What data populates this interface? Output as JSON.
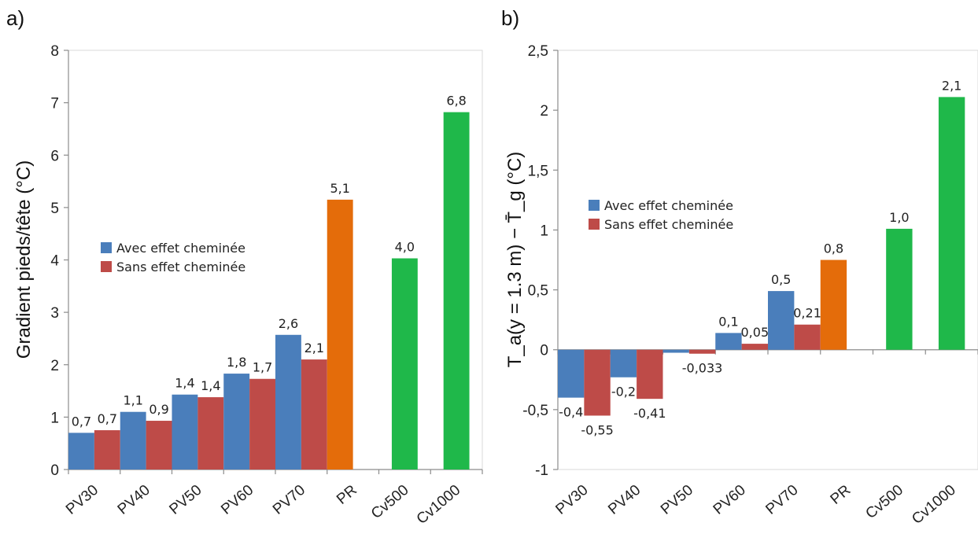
{
  "chart_data": [
    {
      "panel_label": "a)",
      "type": "bar",
      "ylabel": "Gradient pieds/tête (°C)",
      "ylim": [
        0,
        8
      ],
      "yticks": [
        "0",
        "1",
        "2",
        "3",
        "4",
        "5",
        "6",
        "7",
        "8"
      ],
      "categories": [
        "PV30",
        "PV40",
        "PV50",
        "PV60",
        "PV70",
        "PR",
        "Cv500",
        "Cv1000"
      ],
      "legend": [
        "Avec effet cheminée",
        "Sans effet cheminée"
      ],
      "legend_position": "center-left",
      "colors": {
        "avec": "#4a7ebb",
        "sans": "#be4b48",
        "pr": "#e46c0a",
        "cv": "#1fb84a"
      },
      "bars": [
        {
          "category": "PV30",
          "series": "avec",
          "value": 0.7,
          "label": "0,7"
        },
        {
          "category": "PV30",
          "series": "sans",
          "value": 0.75,
          "label": "0,7"
        },
        {
          "category": "PV40",
          "series": "avec",
          "value": 1.1,
          "label": "1,1"
        },
        {
          "category": "PV40",
          "series": "sans",
          "value": 0.93,
          "label": "0,9"
        },
        {
          "category": "PV50",
          "series": "avec",
          "value": 1.43,
          "label": "1,4"
        },
        {
          "category": "PV50",
          "series": "sans",
          "value": 1.38,
          "label": "1,4"
        },
        {
          "category": "PV60",
          "series": "avec",
          "value": 1.83,
          "label": "1,8"
        },
        {
          "category": "PV60",
          "series": "sans",
          "value": 1.73,
          "label": "1,7"
        },
        {
          "category": "PV70",
          "series": "avec",
          "value": 2.57,
          "label": "2,6"
        },
        {
          "category": "PV70",
          "series": "sans",
          "value": 2.1,
          "label": "2,1"
        },
        {
          "category": "PR",
          "series": "single",
          "value": 5.15,
          "label": "5,1"
        },
        {
          "category": "Cv500",
          "series": "single",
          "value": 4.03,
          "label": "4,0"
        },
        {
          "category": "Cv1000",
          "series": "single",
          "value": 6.82,
          "label": "6,8"
        }
      ]
    },
    {
      "panel_label": "b)",
      "type": "bar",
      "ylabel": "T_a(y = 1.3 m) − T̄_g (°C)",
      "ylim": [
        -1,
        2.5
      ],
      "yticks": [
        "-1",
        "-0,5",
        "0",
        "0,5",
        "1",
        "1,5",
        "2",
        "2,5"
      ],
      "categories": [
        "PV30",
        "PV40",
        "PV50",
        "PV60",
        "PV70",
        "PR",
        "Cv500",
        "Cv1000"
      ],
      "legend": [
        "Avec effet cheminée",
        "Sans effet cheminée"
      ],
      "legend_position": "center-left",
      "colors": {
        "avec": "#4a7ebb",
        "sans": "#be4b48",
        "pr": "#e46c0a",
        "cv": "#1fb84a"
      },
      "bars": [
        {
          "category": "PV30",
          "series": "avec",
          "value": -0.4,
          "label": "-0,4"
        },
        {
          "category": "PV30",
          "series": "sans",
          "value": -0.55,
          "label": "-0,55"
        },
        {
          "category": "PV40",
          "series": "avec",
          "value": -0.23,
          "label": "-0,2"
        },
        {
          "category": "PV40",
          "series": "sans",
          "value": -0.41,
          "label": "-0,41"
        },
        {
          "category": "PV50",
          "series": "avec",
          "value": -0.025,
          "label": ""
        },
        {
          "category": "PV50",
          "series": "sans",
          "value": -0.033,
          "label": "-0,033"
        },
        {
          "category": "PV60",
          "series": "avec",
          "value": 0.14,
          "label": "0,1"
        },
        {
          "category": "PV60",
          "series": "sans",
          "value": 0.05,
          "label": "0,05"
        },
        {
          "category": "PV70",
          "series": "avec",
          "value": 0.49,
          "label": "0,5"
        },
        {
          "category": "PV70",
          "series": "sans",
          "value": 0.21,
          "label": "0,21"
        },
        {
          "category": "PR",
          "series": "single",
          "value": 0.75,
          "label": "0,8"
        },
        {
          "category": "Cv500",
          "series": "single",
          "value": 1.01,
          "label": "1,0"
        },
        {
          "category": "Cv1000",
          "series": "single",
          "value": 2.11,
          "label": "2,1"
        }
      ]
    }
  ]
}
